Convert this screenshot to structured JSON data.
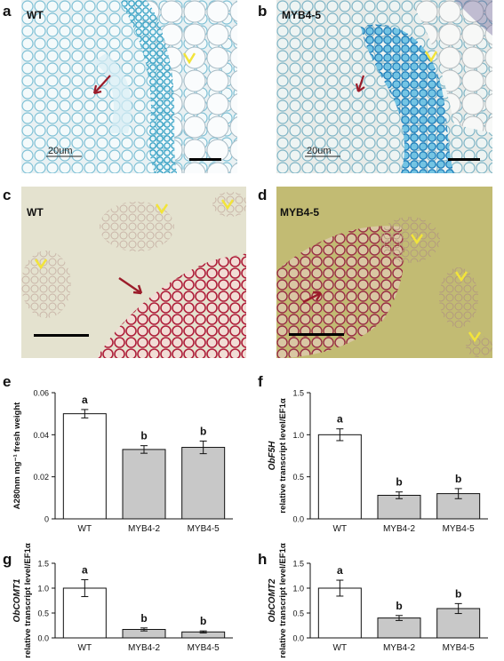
{
  "panels": {
    "a": {
      "letter": "a",
      "label": "WT",
      "scale": "20um"
    },
    "b": {
      "letter": "b",
      "label": "MYB4-5",
      "scale": "20um"
    },
    "c": {
      "letter": "c",
      "label": "WT"
    },
    "d": {
      "letter": "d",
      "label": "MYB4-5"
    },
    "e": {
      "letter": "e"
    },
    "f": {
      "letter": "f"
    },
    "g": {
      "letter": "g"
    },
    "h": {
      "letter": "h"
    }
  },
  "colors": {
    "wt_bar": "#ffffff",
    "mutant_bar": "#c8c8c8",
    "stain_blue": "#3aa6c8",
    "stain_red": "#b0203c",
    "arrow_red": "#9b1c2a",
    "arrowhead_yellow": "#f2e43a"
  },
  "chart_data": [
    {
      "id": "e",
      "type": "bar",
      "categories": [
        "WT",
        "MYB4-2",
        "MYB4-5"
      ],
      "values": [
        0.05,
        0.033,
        0.034
      ],
      "errors": [
        0.002,
        0.0018,
        0.003
      ],
      "letters": [
        "a",
        "b",
        "b"
      ],
      "ylabel": "A280nm mg⁻¹ fresh weight",
      "ylim": [
        0,
        0.06
      ],
      "yticks": [
        "0",
        "0.02",
        "0.04",
        "0.06"
      ],
      "ytick_values": [
        0,
        0.02,
        0.04,
        0.06
      ]
    },
    {
      "id": "f",
      "type": "bar",
      "categories": [
        "WT",
        "MYB4-2",
        "MYB4-5"
      ],
      "values": [
        1.0,
        0.28,
        0.3
      ],
      "errors": [
        0.07,
        0.04,
        0.06
      ],
      "letters": [
        "a",
        "b",
        "b"
      ],
      "gene": "ObF5H",
      "ylabel": "relative transcript level/EF1α",
      "ylim": [
        0,
        1.5
      ],
      "yticks": [
        "0.0",
        "0.5",
        "1.0",
        "1.5"
      ],
      "ytick_values": [
        0,
        0.5,
        1.0,
        1.5
      ]
    },
    {
      "id": "g",
      "type": "bar",
      "categories": [
        "WT",
        "MYB4-2",
        "MYB4-5"
      ],
      "values": [
        1.0,
        0.17,
        0.12
      ],
      "errors": [
        0.17,
        0.03,
        0.02
      ],
      "letters": [
        "a",
        "b",
        "b"
      ],
      "gene": "ObCOMT1",
      "ylabel": "relative transcript level/EF1α",
      "ylim": [
        0,
        1.5
      ],
      "yticks": [
        "0.0",
        "0.5",
        "1.0",
        "1.5"
      ],
      "ytick_values": [
        0,
        0.5,
        1.0,
        1.5
      ]
    },
    {
      "id": "h",
      "type": "bar",
      "categories": [
        "WT",
        "MYB4-2",
        "MYB4-5"
      ],
      "values": [
        1.0,
        0.4,
        0.59
      ],
      "errors": [
        0.16,
        0.05,
        0.1
      ],
      "letters": [
        "a",
        "b",
        "b"
      ],
      "gene": "ObCOMT2",
      "ylabel": "relative transcript level/EF1α",
      "ylim": [
        0,
        1.5
      ],
      "yticks": [
        "0.0",
        "0.5",
        "1.0",
        "1.5"
      ],
      "ytick_values": [
        0,
        0.5,
        1.0,
        1.5
      ]
    }
  ]
}
